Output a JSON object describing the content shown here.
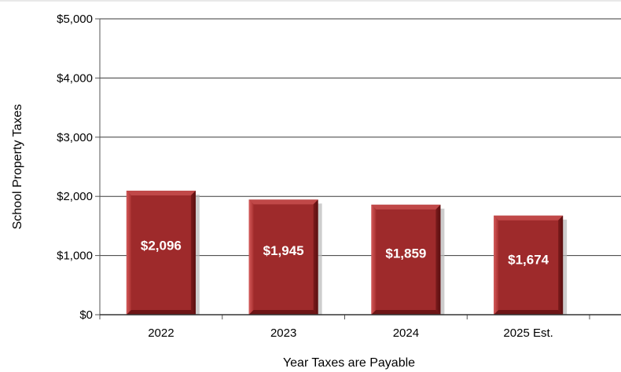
{
  "chart_data": {
    "type": "bar",
    "categories": [
      "2022",
      "2023",
      "2024",
      "2025 Est."
    ],
    "values": [
      2096,
      1945,
      1859,
      1674
    ],
    "data_labels": [
      "$2,096",
      "$1,945",
      "$1,859",
      "$1,674"
    ],
    "ylim": [
      0,
      5000
    ],
    "yticks": [
      0,
      1000,
      2000,
      3000,
      4000,
      5000
    ],
    "ytick_labels": [
      "$0",
      "$1,000",
      "$2,000",
      "$3,000",
      "$4,000",
      "$5,000"
    ],
    "xlabel": "Year Taxes are Payable",
    "ylabel": "School Property Taxes",
    "grid": true,
    "bar_color": "#9e2a2b"
  }
}
